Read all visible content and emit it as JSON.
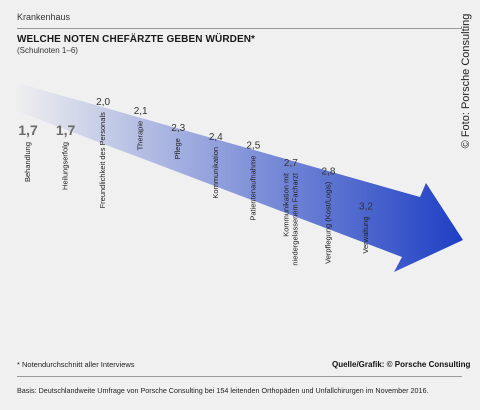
{
  "header": {
    "kicker": "Krankenhaus",
    "title": "WELCHE NOTEN CHEFÄRZTE GEBEN WÜRDEN*",
    "subtitle": "(Schulnoten 1–6)"
  },
  "chart_data": {
    "type": "bar",
    "title": "WELCHE NOTEN CHEFÄRZTE GEBEN WÜRDEN*",
    "subtitle": "(Schulnoten 1–6)",
    "categories": [
      "Behandlung",
      "Heilungserfolg",
      "Freundlichkeit des Personals",
      "Therapie",
      "Pflege",
      "Kommunikation",
      "Patientenaufnahme",
      "Kommunikation mit niedergelassenem Facharzt",
      "Verpflegung (Kost/Logis)",
      "Verwaltung"
    ],
    "category_lines": [
      [
        "Behandlung"
      ],
      [
        "Heilungserfolg"
      ],
      [
        "Freundlichkeit des Personals"
      ],
      [
        "Therapie"
      ],
      [
        "Pflege"
      ],
      [
        "Kommunikation"
      ],
      [
        "Patientenaufnahme"
      ],
      [
        "Kommunikation mit",
        "niedergelassenem Facharzt"
      ],
      [
        "Verpflegung (Kost/Logis)"
      ],
      [
        "Verwaltung"
      ]
    ],
    "values": [
      1.7,
      1.7,
      2.0,
      2.1,
      2.3,
      2.4,
      2.5,
      2.7,
      2.8,
      3.2
    ],
    "value_labels": [
      "1,7",
      "1,7",
      "2,0",
      "2,1",
      "2,3",
      "2,4",
      "2,5",
      "2,7",
      "2,8",
      "3,2"
    ],
    "emphasized": [
      true,
      true,
      false,
      false,
      false,
      false,
      false,
      false,
      false,
      false
    ],
    "colors": {
      "arrow_start": "#f0f0f0",
      "arrow_end": "#1e3fc4",
      "emphasis_value": "#6b6b6b",
      "value": "#333333"
    }
  },
  "footer": {
    "footnote": "* Notendurchschnitt aller Interviews",
    "source": "Quelle/Grafik: © Porsche Consulting",
    "basis": "Basis: Deutschlandweite Umfrage von Porsche Consulting bei 154 leitenden Orthopäden und Unfallchirurgen im November 2016."
  },
  "credit": "© Foto: Porsche Consulting"
}
